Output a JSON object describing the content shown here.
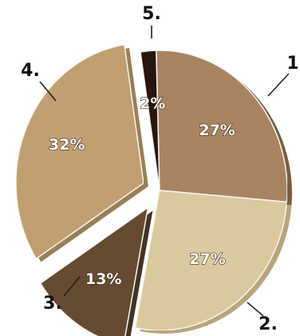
{
  "chart_data": {
    "type": "pie",
    "title": "",
    "slices": [
      {
        "label": "1",
        "value": 27,
        "value_label": "27%",
        "color": "#b08a66",
        "side_color": "#7d5d40",
        "exploded": false
      },
      {
        "label": "2.",
        "value": 27,
        "value_label": "27%",
        "color": "#e4d2a6",
        "side_color": "#b9a57c",
        "exploded": false
      },
      {
        "label": "3.",
        "value": 13,
        "value_label": "13%",
        "color": "#6b4f36",
        "side_color": "#45321f",
        "exploded": true
      },
      {
        "label": "4.",
        "value": 32,
        "value_label": "32%",
        "color": "#c9a677",
        "side_color": "#9c7e55",
        "exploded": true
      },
      {
        "label": "5.",
        "value": 2,
        "value_label": "2%",
        "color": "#2c1e12",
        "side_color": "#150d06",
        "exploded": false
      }
    ]
  }
}
